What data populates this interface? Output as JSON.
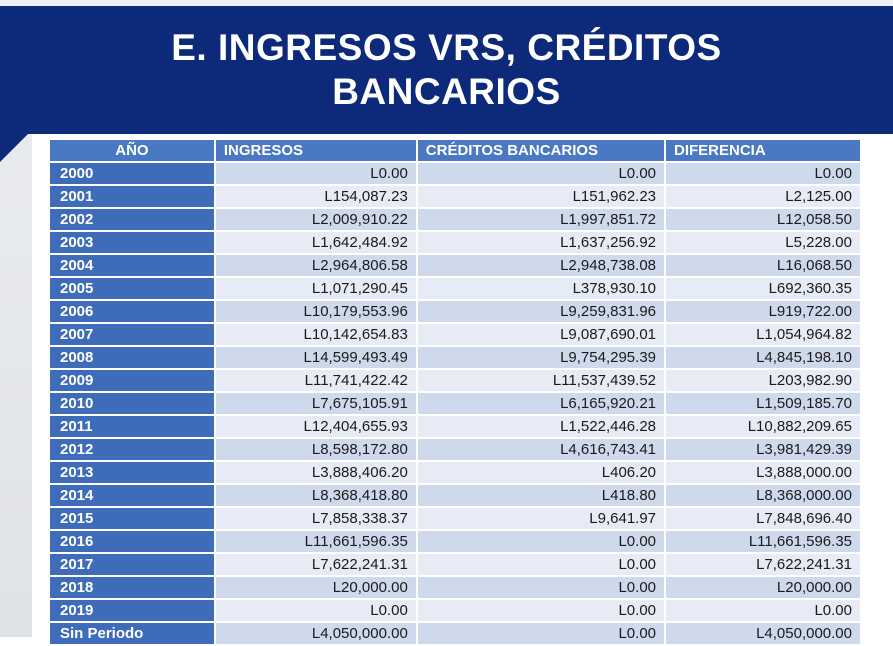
{
  "slide": {
    "title_line1": "E. INGRESOS VRS, CRÉDITOS",
    "title_line2": "BANCARIOS"
  },
  "table": {
    "headers": [
      "AÑO",
      "INGRESOS",
      "CRÉDITOS BANCARIOS",
      "DIFERENCIA"
    ],
    "rows": [
      [
        "2000",
        "L0.00",
        "L0.00",
        "L0.00"
      ],
      [
        "2001",
        "L154,087.23",
        "L151,962.23",
        "L2,125.00"
      ],
      [
        "2002",
        "L2,009,910.22",
        "L1,997,851.72",
        "L12,058.50"
      ],
      [
        "2003",
        "L1,642,484.92",
        "L1,637,256.92",
        "L5,228.00"
      ],
      [
        "2004",
        "L2,964,806.58",
        "L2,948,738.08",
        "L16,068.50"
      ],
      [
        "2005",
        "L1,071,290.45",
        "L378,930.10",
        "L692,360.35"
      ],
      [
        "2006",
        "L10,179,553.96",
        "L9,259,831.96",
        "L919,722.00"
      ],
      [
        "2007",
        "L10,142,654.83",
        "L9,087,690.01",
        "L1,054,964.82"
      ],
      [
        "2008",
        "L14,599,493.49",
        "L9,754,295.39",
        "L4,845,198.10"
      ],
      [
        "2009",
        "L11,741,422.42",
        "L11,537,439.52",
        "L203,982.90"
      ],
      [
        "2010",
        "L7,675,105.91",
        "L6,165,920.21",
        "L1,509,185.70"
      ],
      [
        "2011",
        "L12,404,655.93",
        "L1,522,446.28",
        "L10,882,209.65"
      ],
      [
        "2012",
        "L8,598,172.80",
        "L4,616,743.41",
        "L3,981,429.39"
      ],
      [
        "2013",
        "L3,888,406.20",
        "L406.20",
        "L3,888,000.00"
      ],
      [
        "2014",
        "L8,368,418.80",
        "L418.80",
        "L8,368,000.00"
      ],
      [
        "2015",
        "L7,858,338.37",
        "L9,641.97",
        "L7,848,696.40"
      ],
      [
        "2016",
        "L11,661,596.35",
        "L0.00",
        "L11,661,596.35"
      ],
      [
        "2017",
        "L7,622,241.31",
        "L0.00",
        "L7,622,241.31"
      ],
      [
        "2018",
        "L20,000.00",
        "L0.00",
        "L20,000.00"
      ],
      [
        "2019",
        "L0.00",
        "L0.00",
        "L0.00"
      ],
      [
        "Sin Periodo",
        "L4,050,000.00",
        "L0.00",
        "L4,050,000.00"
      ]
    ]
  },
  "colors": {
    "banner": "#0d2a7a",
    "header": "#4a78c2",
    "year_cell": "#3f6cb8",
    "row_odd": "#cfd9ec",
    "row_even": "#e6ebf5"
  }
}
